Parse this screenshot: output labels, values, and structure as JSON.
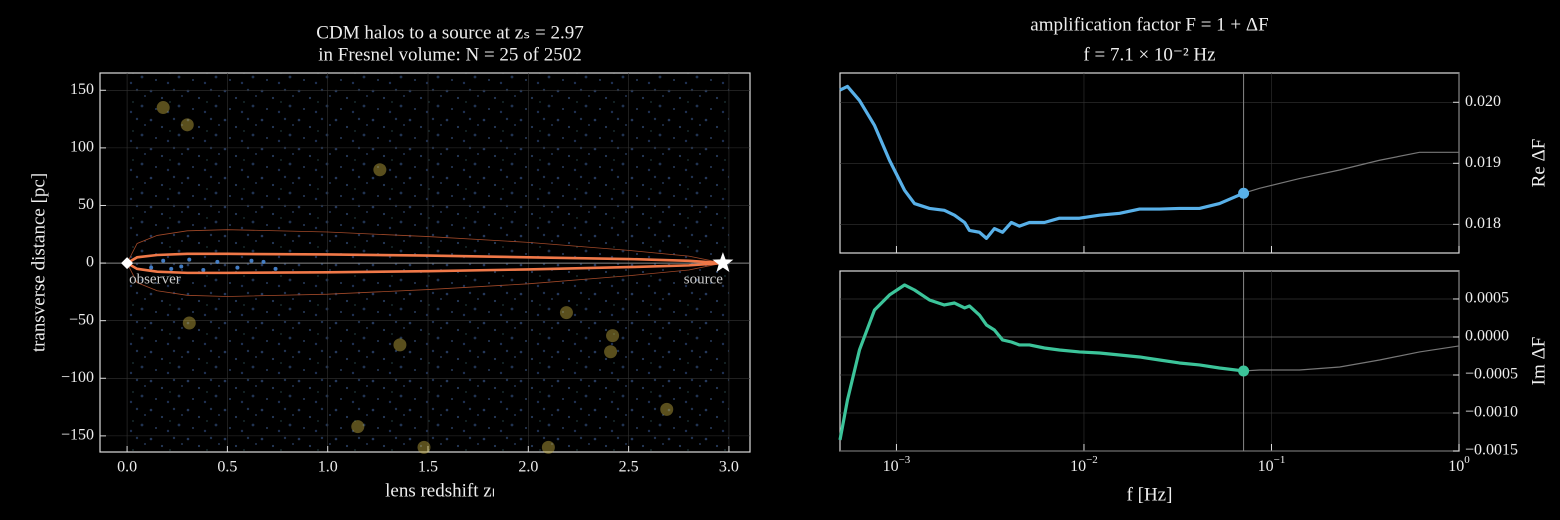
{
  "chart_data": [
    {
      "type": "scatter",
      "title": "CDM halos to a source at zₛ = 2.97",
      "subtitle": "in Fresnel volume: N = 25 of 2502",
      "xlabel": "lens redshift zₗ",
      "ylabel": "transverse distance [pc]",
      "xlim": [
        -0.135,
        3.105
      ],
      "ylim": [
        -164,
        165
      ],
      "xticks": [
        {
          "value": 0,
          "label": "0.0"
        },
        0.5,
        {
          "value": 1,
          "label": "1.0"
        },
        1.5,
        {
          "value": 2,
          "label": "2.0"
        },
        2.5,
        {
          "value": 3,
          "label": "3.0"
        }
      ],
      "yticks": [
        {
          "value": -150,
          "label": "−150"
        },
        {
          "value": -100,
          "label": "−100"
        },
        {
          "value": -50,
          "label": "−50"
        },
        0,
        50,
        100,
        150
      ],
      "grid": true,
      "halos": {
        "color": "#c8b040",
        "x": [
          0.18,
          0.3,
          1.26,
          0.31,
          1.36,
          1.15,
          1.48,
          2.1,
          2.19,
          2.42,
          2.41,
          2.69
        ],
        "y": [
          135,
          120,
          81,
          -52,
          -71,
          -142,
          -160,
          -160,
          -43,
          -63,
          -77,
          -127
        ]
      },
      "fresnel_halos": {
        "color": "#4a8ad8",
        "x": [
          0.12,
          0.18,
          0.22,
          0.27,
          0.31,
          0.38,
          0.45,
          0.55,
          0.62,
          0.68,
          0.74
        ],
        "y": [
          -4,
          2,
          -5,
          -3,
          3,
          -6,
          1,
          -4,
          2,
          1,
          -5
        ]
      },
      "fresnel_inner": {
        "color": "#f07848",
        "x": [
          0,
          0.05,
          0.15,
          0.3,
          0.5,
          1.0,
          1.5,
          2.0,
          2.5,
          2.8,
          2.97
        ],
        "upper": [
          0,
          5,
          7,
          8,
          8,
          7.5,
          6.5,
          5,
          3.5,
          2,
          0
        ],
        "lower": [
          0,
          -5,
          -7.5,
          -8.5,
          -8.5,
          -8,
          -7,
          -5.5,
          -3.5,
          -2,
          0
        ]
      },
      "fresnel_outer": {
        "color": "#a04828",
        "x": [
          0,
          0.05,
          0.15,
          0.3,
          0.5,
          1.0,
          1.5,
          2.0,
          2.5,
          2.8,
          2.97
        ],
        "upper": [
          0,
          17,
          24,
          28,
          29,
          27,
          23,
          18,
          11,
          6,
          0
        ],
        "lower": [
          0,
          -17,
          -24,
          -28,
          -29,
          -27,
          -23,
          -18,
          -11,
          -6,
          0
        ]
      },
      "observer": {
        "x": 0,
        "y": 0,
        "label": "observer"
      },
      "source": {
        "x": 2.97,
        "y": 0,
        "label": "source"
      }
    },
    {
      "type": "line",
      "title": "amplification factor F = 1 + ΔF",
      "subtitle": "f = 7.1 × 10⁻² Hz",
      "ylabel": "Re ΔF",
      "log_x": true,
      "grid": true,
      "color": "#58b0e8",
      "xlim": [
        0.0005,
        1
      ],
      "ylim": [
        0.01753,
        0.02048
      ],
      "xticks": [
        {
          "value": 0.001,
          "label": "10",
          "exponent": "−3"
        },
        {
          "value": 0.01,
          "label": "10",
          "exponent": "−2"
        },
        {
          "value": 0.1,
          "label": "10",
          "exponent": "−1"
        },
        {
          "value": 1,
          "label": "10",
          "exponent": "0"
        }
      ],
      "show_xtick_labels": false,
      "yticks": [
        0.018,
        0.019,
        {
          "value": 0.02,
          "label": "0.020"
        }
      ],
      "marker_x": 0.071,
      "x": [
        0.0005,
        0.000548,
        0.000635,
        0.000764,
        0.000918,
        0.001104,
        0.001248,
        0.0015,
        0.0018,
        0.00204,
        0.00231,
        0.00245,
        0.00277,
        0.00302,
        0.00333,
        0.00368,
        0.0041,
        0.00453,
        0.00512,
        0.00615,
        0.0074,
        0.00946,
        0.0121,
        0.0155,
        0.0198,
        0.0253,
        0.0323,
        0.0413,
        0.0528,
        0.071,
        0.0863,
        0.141,
        0.231,
        0.377,
        0.616,
        1.0
      ],
      "values": [
        0.0202,
        0.02026,
        0.02003,
        0.01962,
        0.01905,
        0.01856,
        0.01834,
        0.01826,
        0.01823,
        0.01815,
        0.01803,
        0.0179,
        0.01787,
        0.01777,
        0.01793,
        0.01787,
        0.01803,
        0.01797,
        0.01803,
        0.01803,
        0.0181,
        0.0181,
        0.01815,
        0.01818,
        0.01825,
        0.01825,
        0.01826,
        0.01826,
        0.01834,
        0.01851,
        0.01859,
        0.01875,
        0.01889,
        0.01905,
        0.01918,
        0.01918
      ]
    },
    {
      "type": "line",
      "xlabel": "f [Hz]",
      "ylabel": "Im ΔF",
      "log_x": true,
      "grid": true,
      "color": "#3cc49a",
      "xlim": [
        0.0005,
        1
      ],
      "ylim": [
        -0.0015,
        0.000868
      ],
      "xticks": [
        {
          "value": 0.001,
          "label": "10",
          "exponent": "−3"
        },
        {
          "value": 0.01,
          "label": "10",
          "exponent": "−2"
        },
        {
          "value": 0.1,
          "label": "10",
          "exponent": "−1"
        },
        {
          "value": 1,
          "label": "10",
          "exponent": "0"
        }
      ],
      "show_xtick_labels": true,
      "yticks": [
        {
          "value": -0.0015,
          "label": "−0.0015"
        },
        {
          "value": -0.001,
          "label": "−0.0010"
        },
        {
          "value": -0.0005,
          "label": "−0.0005"
        },
        {
          "value": 0,
          "label": "0.0000"
        },
        0.0005
      ],
      "marker_x": 0.071,
      "x": [
        0.0005,
        0.000548,
        0.000635,
        0.000764,
        0.000918,
        0.001104,
        0.001248,
        0.0015,
        0.0018,
        0.00204,
        0.00231,
        0.00245,
        0.00277,
        0.00302,
        0.00333,
        0.00368,
        0.0041,
        0.00453,
        0.00512,
        0.00615,
        0.0074,
        0.00946,
        0.0121,
        0.0155,
        0.0198,
        0.0253,
        0.0323,
        0.0413,
        0.0528,
        0.071,
        0.0863,
        0.141,
        0.231,
        0.377,
        0.616,
        1.0
      ],
      "values": [
        -0.001355,
        -0.000829,
        -0.000171,
        0.000355,
        0.000553,
        0.000684,
        0.000618,
        0.000487,
        0.000421,
        0.000447,
        0.000382,
        0.000408,
        0.000289,
        0.000158,
        9.2e-05,
        -3.9e-05,
        -6.6e-05,
        -0.000105,
        -0.000105,
        -0.000145,
        -0.000171,
        -0.000197,
        -0.000211,
        -0.000237,
        -0.000263,
        -0.000303,
        -0.000342,
        -0.000368,
        -0.000408,
        -0.000447,
        -0.000434,
        -0.000434,
        -0.000395,
        -0.000303,
        -0.000197,
        -0.000118
      ]
    }
  ]
}
